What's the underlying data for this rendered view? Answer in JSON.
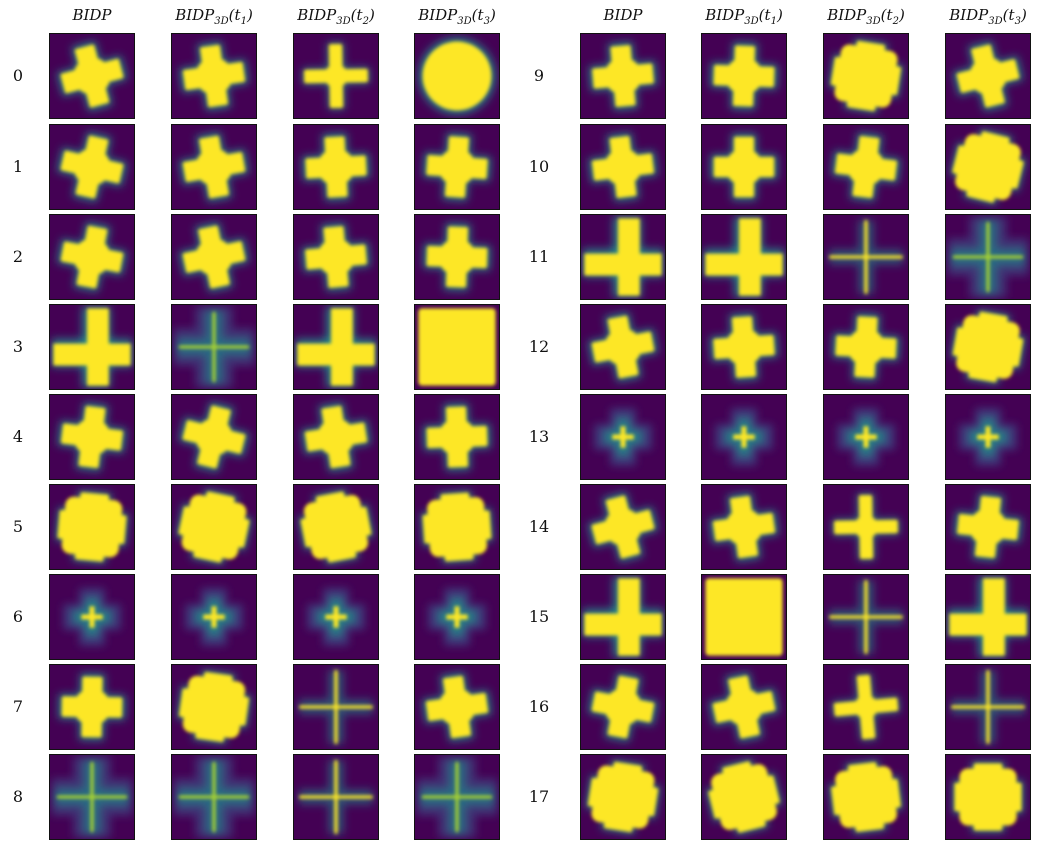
{
  "columns_left": [
    {
      "base": "BIDP",
      "sub": "",
      "arg": ""
    },
    {
      "base": "BIDP",
      "sub": "3D",
      "arg": "(t1)"
    },
    {
      "base": "BIDP",
      "sub": "3D",
      "arg": "(t2)"
    },
    {
      "base": "BIDP",
      "sub": "3D",
      "arg": "(t3)"
    }
  ],
  "columns_right": [
    {
      "base": "BIDP",
      "sub": "",
      "arg": ""
    },
    {
      "base": "BIDP",
      "sub": "3D",
      "arg": "(t1)"
    },
    {
      "base": "BIDP",
      "sub": "3D",
      "arg": "(t2)"
    },
    {
      "base": "BIDP",
      "sub": "3D",
      "arg": "(t3)"
    }
  ],
  "rows_left": [
    "0",
    "1",
    "2",
    "3",
    "4",
    "5",
    "6",
    "7",
    "8"
  ],
  "rows_right": [
    "9",
    "10",
    "11",
    "12",
    "13",
    "14",
    "15",
    "16",
    "17"
  ],
  "colors": {
    "background": "#440154",
    "fill": "#fde725",
    "glow_mid": "#21918c",
    "glow_far": "#3b528b",
    "border": "#111111"
  },
  "shapes_left": [
    [
      "blob",
      "blob",
      "cross",
      "disk"
    ],
    [
      "blob",
      "blob",
      "blob",
      "blob"
    ],
    [
      "blob",
      "blob",
      "blob",
      "blob"
    ],
    [
      "bigL",
      "faintCross",
      "bigL",
      "square"
    ],
    [
      "blob",
      "blob",
      "blob",
      "blob"
    ],
    [
      "bigBlob",
      "bigBlob",
      "bigBlob",
      "bigBlob"
    ],
    [
      "tiny",
      "tiny",
      "tiny",
      "tiny"
    ],
    [
      "blob",
      "bigBlob",
      "thinCross",
      "blob"
    ],
    [
      "faintCross",
      "faintCross",
      "thinCross",
      "faintCross"
    ]
  ],
  "shapes_right": [
    [
      "blob",
      "blob",
      "bigBlob",
      "blob"
    ],
    [
      "blob",
      "blob",
      "blob",
      "bigBlob"
    ],
    [
      "bigL",
      "bigL",
      "thinCross",
      "faintCross"
    ],
    [
      "blob",
      "blob",
      "blob",
      "bigBlob"
    ],
    [
      "tiny",
      "tiny",
      "tiny",
      "tiny"
    ],
    [
      "blob",
      "blob",
      "cross",
      "blob"
    ],
    [
      "bigL",
      "square",
      "thinCross",
      "bigL"
    ],
    [
      "blob",
      "blob",
      "cross",
      "thinCross"
    ],
    [
      "bigBlob",
      "bigBlob",
      "bigBlob",
      "bigBlob"
    ]
  ]
}
